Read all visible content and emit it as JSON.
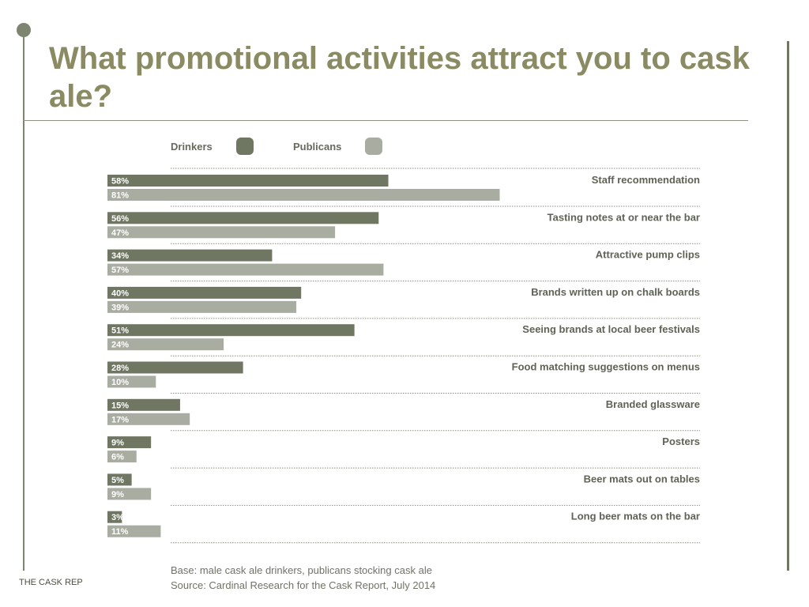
{
  "slide": {
    "title": "What promotional activities attract you to cask ale?",
    "footer": "THE CASK REP",
    "base_note": "Base: male cask ale drinkers, publicans stocking cask ale",
    "source_note": "Source: Cardinal Research for the Cask Report, July 2014",
    "colors": {
      "accent_line": "#7d8470",
      "title": "#8a8a63"
    }
  },
  "chart_data": {
    "type": "bar",
    "orientation": "horizontal",
    "categories": [
      "Staff recommendation",
      "Tasting notes at or near the bar",
      "Attractive pump clips",
      "Brands written up on chalk boards",
      "Seeing brands at local beer festivals",
      "Food matching suggestions on menus",
      "Branded glassware",
      "Posters",
      "Beer mats out on tables",
      "Long beer mats on the bar"
    ],
    "series": [
      {
        "name": "Drinkers",
        "color": "#6f7763",
        "values": [
          58,
          56,
          34,
          40,
          51,
          28,
          15,
          9,
          5,
          3
        ]
      },
      {
        "name": "Publicans",
        "color": "#a9ada1",
        "values": [
          81,
          47,
          57,
          39,
          24,
          10,
          17,
          6,
          9,
          11
        ]
      }
    ],
    "data_labels": [
      [
        "58%",
        "56%",
        "34%",
        "40%",
        "51%",
        "28%",
        "15%",
        "9%",
        "5%",
        "3%"
      ],
      [
        "81%",
        "47%",
        "57%",
        "39%",
        "24%",
        "10%",
        "17%",
        "6%",
        "9%",
        "11%"
      ]
    ],
    "value_unit": "%",
    "legend_position": "top",
    "grid": false
  }
}
